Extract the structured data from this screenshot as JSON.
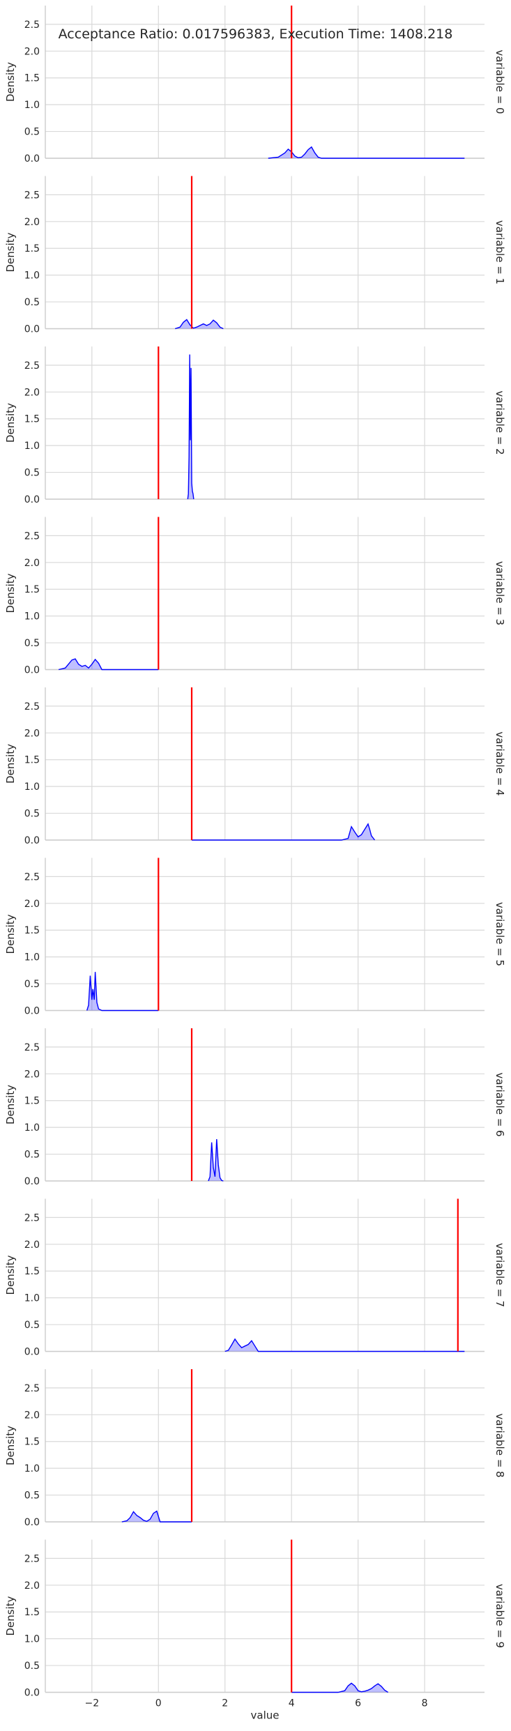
{
  "chart_data": {
    "type": "area",
    "title": "Acceptance Ratio: 0.017596383, Execution Time: 1408.218",
    "xlabel": "value",
    "ylabel": "Density",
    "xlim": [
      -3.4,
      9.8
    ],
    "ylim": [
      0,
      2.85
    ],
    "xticks": [
      -2,
      0,
      2,
      4,
      6,
      8
    ],
    "yticks": [
      0.0,
      0.5,
      1.0,
      1.5,
      2.0,
      2.5
    ],
    "grid": true,
    "fill_color": "#0000ff",
    "true_value_color": "#ff0000",
    "panels": [
      {
        "label": "variable = 0",
        "true_value": 4.0,
        "x": [
          3.3,
          3.6,
          3.8,
          3.9,
          4.0,
          4.1,
          4.2,
          4.3,
          4.4,
          4.5,
          4.6,
          4.7,
          4.8,
          4.9,
          9.2
        ],
        "y": [
          0,
          0.02,
          0.1,
          0.17,
          0.12,
          0.04,
          0.01,
          0.02,
          0.08,
          0.16,
          0.21,
          0.1,
          0.02,
          0,
          0
        ]
      },
      {
        "label": "variable = 1",
        "true_value": 1.0,
        "x": [
          0.5,
          0.65,
          0.75,
          0.85,
          0.95,
          1.05,
          1.15,
          1.25,
          1.35,
          1.45,
          1.55,
          1.65,
          1.75,
          1.85,
          1.95
        ],
        "y": [
          0,
          0.03,
          0.12,
          0.17,
          0.07,
          0.01,
          0.03,
          0.06,
          0.09,
          0.06,
          0.09,
          0.16,
          0.11,
          0.03,
          0
        ]
      },
      {
        "label": "variable = 2",
        "true_value": 0.0,
        "x": [
          0.88,
          0.9,
          0.92,
          0.94,
          0.96,
          0.98,
          1.0,
          1.02,
          1.04,
          1.06
        ],
        "y": [
          0,
          0.1,
          0.8,
          2.7,
          1.1,
          2.45,
          0.3,
          0.15,
          0.1,
          0
        ]
      },
      {
        "label": "variable = 3",
        "true_value": 0.0,
        "x": [
          -3.0,
          -2.8,
          -2.6,
          -2.5,
          -2.4,
          -2.3,
          -2.2,
          -2.1,
          -2.0,
          -1.9,
          -1.8,
          -1.7,
          0.0
        ],
        "y": [
          0,
          0.03,
          0.18,
          0.2,
          0.1,
          0.06,
          0.08,
          0.03,
          0.1,
          0.19,
          0.12,
          0,
          0
        ]
      },
      {
        "label": "variable = 4",
        "true_value": 1.0,
        "x": [
          1.0,
          5.5,
          5.7,
          5.8,
          5.9,
          6.0,
          6.1,
          6.2,
          6.3,
          6.35,
          6.4,
          6.5
        ],
        "y": [
          0,
          0,
          0.03,
          0.25,
          0.15,
          0.06,
          0.1,
          0.2,
          0.3,
          0.2,
          0.08,
          0
        ]
      },
      {
        "label": "variable = 5",
        "true_value": 0.0,
        "x": [
          -2.15,
          -2.1,
          -2.05,
          -2.0,
          -1.97,
          -1.93,
          -1.9,
          -1.85,
          -1.8,
          -1.7,
          0.0
        ],
        "y": [
          0,
          0.1,
          0.65,
          0.2,
          0.4,
          0.2,
          0.72,
          0.15,
          0.03,
          0,
          0
        ]
      },
      {
        "label": "variable = 6",
        "true_value": 1.0,
        "x": [
          1.5,
          1.55,
          1.6,
          1.65,
          1.7,
          1.75,
          1.8,
          1.85,
          1.9,
          1.95
        ],
        "y": [
          0,
          0.08,
          0.72,
          0.25,
          0.08,
          0.78,
          0.3,
          0.06,
          0.01,
          0
        ]
      },
      {
        "label": "variable = 7",
        "true_value": 9.0,
        "x": [
          2.0,
          2.1,
          2.2,
          2.3,
          2.4,
          2.5,
          2.6,
          2.7,
          2.8,
          2.9,
          3.0,
          9.2
        ],
        "y": [
          0,
          0.02,
          0.12,
          0.23,
          0.14,
          0.07,
          0.1,
          0.13,
          0.2,
          0.1,
          0,
          0
        ]
      },
      {
        "label": "variable = 8",
        "true_value": 1.0,
        "x": [
          -1.1,
          -0.95,
          -0.85,
          -0.75,
          -0.65,
          -0.55,
          -0.45,
          -0.35,
          -0.25,
          -0.15,
          -0.05,
          0.05,
          1.0
        ],
        "y": [
          0,
          0.02,
          0.08,
          0.19,
          0.12,
          0.08,
          0.03,
          0.01,
          0.05,
          0.16,
          0.2,
          0,
          0
        ]
      },
      {
        "label": "variable = 9",
        "true_value": 4.0,
        "x": [
          4.0,
          5.4,
          5.6,
          5.7,
          5.8,
          5.9,
          6.0,
          6.1,
          6.2,
          6.3,
          6.4,
          6.5,
          6.6,
          6.7,
          6.8,
          6.9
        ],
        "y": [
          0,
          0,
          0.03,
          0.12,
          0.17,
          0.12,
          0.03,
          0.01,
          0.02,
          0.04,
          0.07,
          0.12,
          0.16,
          0.11,
          0.04,
          0
        ]
      }
    ]
  }
}
